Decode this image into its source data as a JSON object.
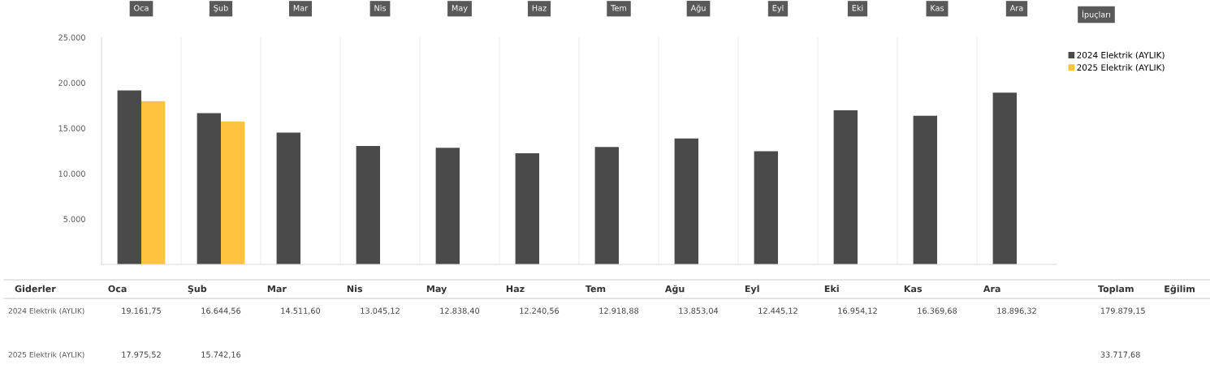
{
  "chart_data": {
    "type": "bar",
    "categories": [
      "Oca",
      "Şub",
      "Mar",
      "Nis",
      "May",
      "Haz",
      "Tem",
      "Ağu",
      "Eyl",
      "Eki",
      "Kas",
      "Ara"
    ],
    "series": [
      {
        "name": "2024 Elektrik (AYLIK)",
        "color": "#4a4a4a",
        "values": [
          19161.75,
          16644.56,
          14511.6,
          13045.12,
          12838.4,
          12240.56,
          12918.88,
          13853.04,
          12445.12,
          16954.12,
          16369.68,
          18896.32
        ],
        "value_labels": [
          "19.161,75",
          "16.644,56",
          "14.511,60",
          "13.045,12",
          "12.838,40",
          "12.240,56",
          "12.918,88",
          "13.853,04",
          "12.445,12",
          "16.954,12",
          "16.369,68",
          "18.896,32"
        ]
      },
      {
        "name": "2025 Elektrik (AYLIK)",
        "color": "#ffc33f",
        "values": [
          17975.52,
          15742.16,
          null,
          null,
          null,
          null,
          null,
          null,
          null,
          null,
          null,
          null
        ],
        "value_labels": [
          "17.975,52",
          "15.742,16",
          null,
          null,
          null,
          null,
          null,
          null,
          null,
          null,
          null,
          null
        ]
      }
    ],
    "ylim": [
      0,
      25000
    ],
    "yticks": [
      {
        "value": 0,
        "label": null
      },
      {
        "value": 5000,
        "label": "5.000"
      },
      {
        "value": 10000,
        "label": "10.000"
      },
      {
        "value": 15000,
        "label": "15.000"
      },
      {
        "value": 20000,
        "label": "20.000"
      },
      {
        "value": 25000,
        "label": "25.000"
      }
    ],
    "grid": false,
    "legend": "top right",
    "annotations": [
      "İpuçları",
      "Giderler",
      "Toplam",
      "Eğilim",
      "179.879,15",
      "33.717,68"
    ]
  }
}
